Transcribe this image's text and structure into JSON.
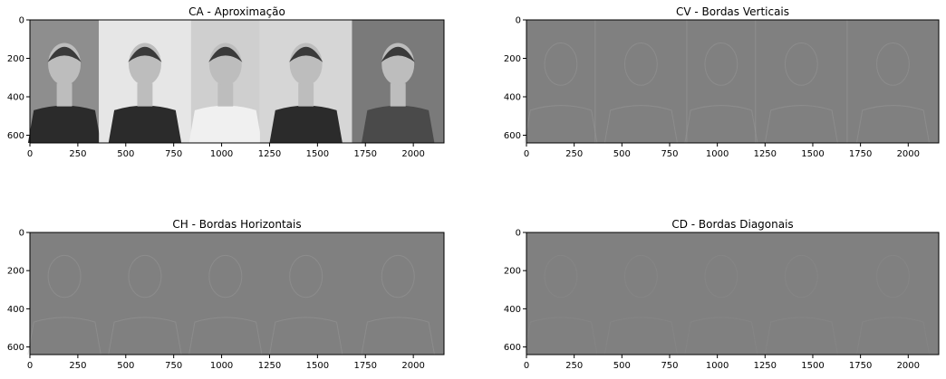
{
  "chart_data": [
    {
      "type": "heatmap",
      "title": "CA - Aproximação",
      "content": "grayscale approximation coefficients (five face photos)",
      "xlim": [
        0,
        2160
      ],
      "ylim": [
        640,
        0
      ],
      "xticks": [
        0,
        250,
        500,
        750,
        1000,
        1250,
        1500,
        1750,
        2000
      ],
      "yticks": [
        0,
        200,
        400,
        600
      ]
    },
    {
      "type": "heatmap",
      "title": "CV - Bordas Verticais",
      "content": "vertical detail coefficients",
      "xlim": [
        0,
        2160
      ],
      "ylim": [
        640,
        0
      ],
      "xticks": [
        0,
        250,
        500,
        750,
        1000,
        1250,
        1500,
        1750,
        2000
      ],
      "yticks": [
        0,
        200,
        400,
        600
      ]
    },
    {
      "type": "heatmap",
      "title": "CH - Bordas Horizontais",
      "content": "horizontal detail coefficients",
      "xlim": [
        0,
        2160
      ],
      "ylim": [
        640,
        0
      ],
      "xticks": [
        0,
        250,
        500,
        750,
        1000,
        1250,
        1500,
        1750,
        2000
      ],
      "yticks": [
        0,
        200,
        400,
        600
      ]
    },
    {
      "type": "heatmap",
      "title": "CD - Bordas Diagonais",
      "content": "diagonal detail coefficients",
      "xlim": [
        0,
        2160
      ],
      "ylim": [
        640,
        0
      ],
      "xticks": [
        0,
        250,
        500,
        750,
        1000,
        1250,
        1500,
        1750,
        2000
      ],
      "yticks": [
        0,
        200,
        400,
        600
      ]
    }
  ],
  "colors": {
    "detail_gray": "#808080",
    "photo_bg_1": "#8e8e8e",
    "photo_bg_2": "#e6e6e6",
    "photo_bg_3": "#cfcfcf",
    "photo_bg_4": "#d6d6d6",
    "photo_bg_5": "#7a7a7a",
    "shirt_dark": "#2b2b2b",
    "shirt_light": "#f0f0f0",
    "skin": "#bdbdbd",
    "hair": "#3a3a3a"
  }
}
